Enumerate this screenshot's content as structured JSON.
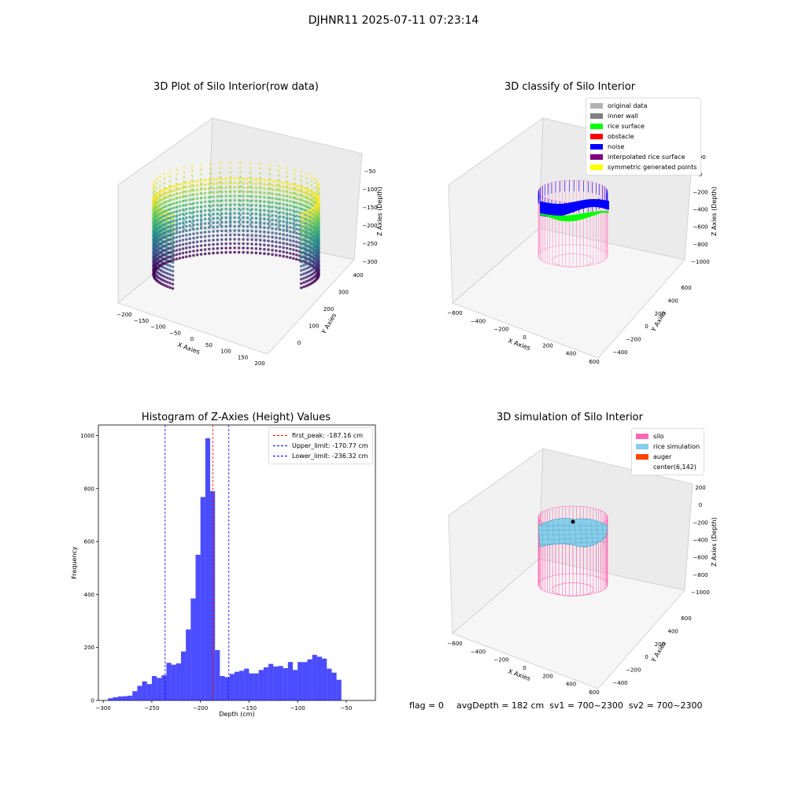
{
  "suptitle": "DJHNR11 2025-07-11 07:23:14",
  "panels": {
    "raw": {
      "title": "3D Plot of Silo Interior(row data)",
      "xlabel": "X Axies",
      "ylabel": "Y Axies",
      "zlabel": "Z Axies (Depth)",
      "xticks": [
        "−200",
        "−150",
        "−100",
        "−50",
        "0",
        "50",
        "100",
        "150",
        "200"
      ],
      "yticks": [
        "0",
        "100",
        "200",
        "300",
        "400"
      ],
      "zticks": [
        "−50",
        "−100",
        "−150",
        "−200",
        "−250",
        "−300"
      ]
    },
    "classify": {
      "title": "3D classify of Silo Interior",
      "xlabel": "X Axies",
      "ylabel": "Y Axies",
      "zlabel": "Z Axies (Depth)",
      "xticks": [
        "−600",
        "−400",
        "−200",
        "0",
        "200",
        "400",
        "600"
      ],
      "yticks": [
        "−400",
        "−200",
        "0",
        "200",
        "400",
        "600"
      ],
      "zticks": [
        "200",
        "0",
        "−200",
        "−400",
        "−600",
        "−800",
        "−1000"
      ],
      "legend": [
        {
          "label": "original data",
          "color": "#b3b3b3"
        },
        {
          "label": "inner wall",
          "color": "#808080"
        },
        {
          "label": "rice surface",
          "color": "#00ff00"
        },
        {
          "label": "obstacle",
          "color": "#ff0000"
        },
        {
          "label": "noise",
          "color": "#0000ff"
        },
        {
          "label": "interpolated rice surface",
          "color": "#800080"
        },
        {
          "label": "symmetric generated points",
          "color": "#ffff00"
        }
      ]
    },
    "simulation": {
      "title": "3D simulation of Silo Interior",
      "xlabel": "X Axies",
      "ylabel": "Y Axies",
      "zlabel": "Z Axies (Depth)",
      "xticks": [
        "−600",
        "−400",
        "−200",
        "0",
        "200",
        "400",
        "600"
      ],
      "yticks": [
        "−400",
        "−200",
        "0",
        "200",
        "400",
        "600"
      ],
      "zticks": [
        "200",
        "0",
        "−200",
        "−400",
        "−600",
        "−800",
        "−1000"
      ],
      "legend": [
        {
          "label": "silo",
          "color": "#ff69b4"
        },
        {
          "label": "rice simulation",
          "color": "#87ceeb"
        },
        {
          "label": "auger",
          "color": "#ff4500"
        },
        {
          "label": "center(6,142)",
          "color": "#ffffff"
        }
      ]
    }
  },
  "footer": {
    "flag": "flag = 0",
    "stats": "avgDepth = 182 cm  sv1 = 700~2300  sv2 = 700~2300"
  },
  "chart_data": {
    "type": "bar",
    "title": "Histogram of Z-Axies (Height) Values",
    "xlabel": "Depth (cm)",
    "ylabel": "Frequency",
    "xlim": [
      -305,
      -20
    ],
    "ylim": [
      0,
      1040
    ],
    "xticks": [
      -300,
      -250,
      -200,
      -150,
      -100,
      -50
    ],
    "yticks": [
      0,
      200,
      400,
      600,
      800,
      1000
    ],
    "bar_color": "#0000ff",
    "bin_width": 5,
    "x": [
      -295,
      -290,
      -285,
      -280,
      -275,
      -270,
      -265,
      -260,
      -255,
      -250,
      -245,
      -240,
      -235,
      -230,
      -225,
      -220,
      -215,
      -210,
      -205,
      -200,
      -195,
      -190,
      -185,
      -180,
      -175,
      -170,
      -165,
      -160,
      -155,
      -150,
      -145,
      -140,
      -135,
      -130,
      -125,
      -120,
      -115,
      -110,
      -105,
      -100,
      -95,
      -90,
      -85,
      -80,
      -75,
      -70,
      -65,
      -60,
      -55,
      -50,
      -45,
      -40,
      -35,
      -30,
      -25
    ],
    "values": [
      8,
      12,
      15,
      16,
      18,
      35,
      55,
      72,
      62,
      92,
      85,
      95,
      142,
      135,
      140,
      185,
      268,
      385,
      550,
      768,
      990,
      790,
      190,
      92,
      88,
      100,
      108,
      112,
      120,
      102,
      102,
      115,
      125,
      138,
      128,
      130,
      122,
      145,
      115,
      145,
      145,
      155,
      172,
      165,
      158,
      120,
      105,
      78,
      0,
      0,
      0,
      0,
      0,
      0,
      0
    ],
    "vlines": [
      {
        "x": -187.16,
        "color": "#ff0000",
        "label": "first_peak: -187.16 cm"
      },
      {
        "x": -170.77,
        "color": "#0000ff",
        "label": "Upper_limit: -170.77 cm"
      },
      {
        "x": -236.32,
        "color": "#0000ff",
        "label": "Lower_limit: -236.32 cm"
      }
    ]
  }
}
